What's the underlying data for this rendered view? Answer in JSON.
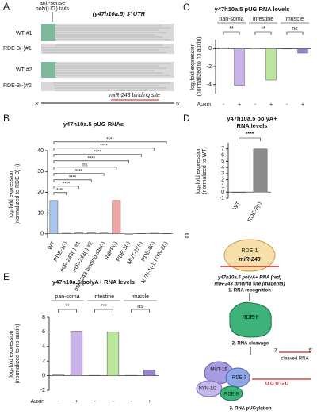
{
  "panel_a": {
    "label": "A",
    "annotation": [
      "anti-sense",
      "poly(UG) tails"
    ],
    "title": "(y47h10a.5) 3' UTR",
    "tracks": [
      "WT #1",
      "RDE-3(-)#1",
      "WT #2",
      "RDE-3(-)#2"
    ],
    "site_label": "miR-243 binding site",
    "end_3": "3'",
    "end_5": "5'"
  },
  "chart_data": [
    {
      "type": "bar",
      "panel": "B",
      "title": [
        "y47h10a.5 pUG RNAs"
      ],
      "y_label": [
        "log₂fold expression",
        "(normalized to RDE-3(-))"
      ],
      "categories": [
        "WT",
        "RDE-1(-)",
        "miR-243(-) #1",
        "miR-243(-) #2",
        "miR-243 binding site(-)",
        "RdRP(-)",
        "RDE-3(-)",
        "MUT-15(-)",
        "RDE-8(-)",
        "NYN-1(-); NYN-2(-)"
      ],
      "values": [
        16,
        0.3,
        0.5,
        0.6,
        0.4,
        16,
        0,
        0.2,
        0.3,
        0.2
      ],
      "colors": [
        "#a9c6ef",
        "#c9b3e8",
        "#b9e69a",
        "#b9e69a",
        "#9fe0c8",
        "#f2a5a5",
        "#d0d0d0",
        "#c9b3e8",
        "#c9b3e8",
        "#c9b3e8"
      ],
      "significance": [
        null,
        "****",
        "****",
        "****",
        "****",
        "ns",
        "****",
        "****",
        "****",
        "****"
      ],
      "ylim": [
        -2,
        40
      ],
      "yticks": [
        0,
        10,
        20,
        30,
        40
      ]
    },
    {
      "type": "bar",
      "panel": "C",
      "title": [
        "y47h10a.5 pUG RNA levels"
      ],
      "y_label": [
        "log₂fold expression",
        "(normalized to no auxin)"
      ],
      "groups": [
        "pan-soma",
        "intestine",
        "muscle"
      ],
      "significance": [
        "**",
        "**",
        "ns"
      ],
      "x_label": "Auxin",
      "categories": [
        "-",
        "+",
        "-",
        "+",
        "-",
        "+"
      ],
      "values": [
        0.1,
        -4.1,
        0.05,
        -3.5,
        0,
        -0.5
      ],
      "colors": [
        "#c9b3e8",
        "#c9b3e8",
        "#b9e69a",
        "#b9e69a",
        "#9b7fd0",
        "#9b7fd0"
      ],
      "ylim": [
        -5,
        1
      ],
      "yticks": [
        -4,
        -2,
        0
      ]
    },
    {
      "type": "bar",
      "panel": "D",
      "title": [
        "y47h10a.5 polyA+",
        "RNA levels"
      ],
      "y_label": [
        "log₂fold expression",
        "(normalized to WT)"
      ],
      "categories": [
        "WT",
        "RDE-3(-)"
      ],
      "values": [
        0,
        7
      ],
      "colors": [
        "#ffffff",
        "#8c8c8c"
      ],
      "significance": "****",
      "ylim": [
        -1,
        8
      ],
      "yticks": [
        -1,
        0,
        1,
        2,
        3,
        4,
        5,
        6,
        7
      ]
    },
    {
      "type": "bar",
      "panel": "E",
      "title": [
        "y47h10a.5 polyA+ RNA levels"
      ],
      "y_label": [
        "log₂fold expression",
        "(normalized to no auxin)"
      ],
      "groups": [
        "pan-soma",
        "intestine",
        "muscle"
      ],
      "significance": [
        "**",
        "***",
        "ns"
      ],
      "x_label": "Auxin",
      "categories": [
        "-",
        "+",
        "-",
        "+",
        "-",
        "+"
      ],
      "values": [
        0.1,
        6.1,
        0.05,
        6,
        0.05,
        0.8
      ],
      "colors": [
        "#c9b3e8",
        "#c9b3e8",
        "#b9e69a",
        "#b9e69a",
        "#9b7fd0",
        "#9b7fd0"
      ],
      "ylim": [
        -2,
        8
      ],
      "yticks": [
        -2,
        0,
        2,
        4,
        6,
        8
      ]
    }
  ],
  "panel_f": {
    "label": "F",
    "protein_1": "RDE-1",
    "mirna": "miR-243",
    "rna_line": "y47h10a.5 polyA+ RNA (red)",
    "site_line": "miR-243 binding site (magenta)",
    "step_1": "1.  RNA recognition",
    "protein_2": "RDE-8",
    "step_2": "2. RNA cleavage",
    "end_3": "3'",
    "end_5": "5'",
    "cleaved": "cleaved RNA",
    "complex": [
      "MUT-15",
      "RDE-3",
      "NYN-1/2",
      "RDE-8"
    ],
    "tail": "U G U G U",
    "step_3": "3. RNA pUGylation"
  }
}
